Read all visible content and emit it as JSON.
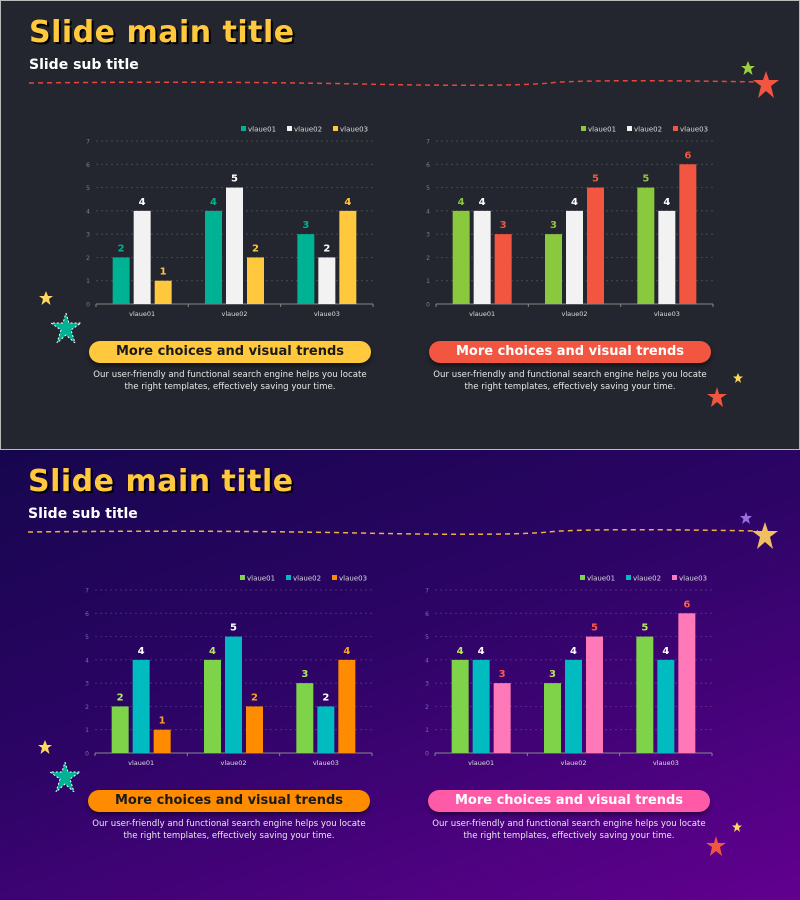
{
  "slides": [
    {
      "title": "Slide main title",
      "subtitle": "Slide sub title",
      "divider_color": "#e8463c",
      "background": "#23262e",
      "panels": [
        {
          "button_label": "More choices and visual trends",
          "button_color": "#ffc83d",
          "button_text_color": "#1a1a1a",
          "description": "Our user-friendly and functional search engine helps you locate the right templates, effectively saving your time."
        },
        {
          "button_label": "More choices and visual trends",
          "button_color": "#f25540",
          "button_text_color": "#ffffff",
          "description": "Our user-friendly and functional search engine helps you locate the right templates, effectively saving your time."
        }
      ]
    },
    {
      "title": "Slide main title",
      "subtitle": "Slide sub title",
      "divider_color": "#f0b040",
      "background": "#2d0466",
      "panels": [
        {
          "button_label": "More choices and visual trends",
          "button_color": "#ff8c00",
          "button_text_color": "#1a1a1a",
          "description": "Our user-friendly and functional search engine helps you locate the right templates, effectively saving your time."
        },
        {
          "button_label": "More choices and visual trends",
          "button_color": "#ff5aa8",
          "button_text_color": "#ffffff",
          "description": "Our user-friendly and functional search engine helps you locate the right templates, effectively saving your time."
        }
      ]
    }
  ],
  "chart_data": [
    {
      "type": "bar",
      "categories": [
        "vlaue01",
        "vlaue02",
        "vlaue03"
      ],
      "ylim": [
        0,
        7
      ],
      "grid": true,
      "legend": "top-right",
      "series": [
        {
          "name": "vlaue01",
          "values": [
            2,
            4,
            3
          ],
          "color": "#00b294",
          "label_color": "#00b294"
        },
        {
          "name": "vlaue02",
          "values": [
            4,
            5,
            2
          ],
          "color": "#f2f2f2",
          "label_color": "#ffffff"
        },
        {
          "name": "vlaue03",
          "values": [
            1,
            2,
            4
          ],
          "color": "#ffc83d",
          "label_color": "#ffc83d"
        }
      ]
    },
    {
      "type": "bar",
      "categories": [
        "vlaue01",
        "vlaue02",
        "vlaue03"
      ],
      "ylim": [
        0,
        7
      ],
      "grid": true,
      "legend": "top-right",
      "series": [
        {
          "name": "vlaue01",
          "values": [
            4,
            3,
            5
          ],
          "color": "#8ac83d",
          "label_color": "#8ac83d"
        },
        {
          "name": "vlaue02",
          "values": [
            4,
            4,
            4
          ],
          "color": "#f2f2f2",
          "label_color": "#ffffff"
        },
        {
          "name": "vlaue03",
          "values": [
            3,
            5,
            6
          ],
          "color": "#f25540",
          "label_color": "#f25540"
        }
      ]
    },
    {
      "type": "bar",
      "categories": [
        "vlaue01",
        "vlaue02",
        "vlaue03"
      ],
      "ylim": [
        0,
        7
      ],
      "grid": true,
      "legend": "top-right",
      "series": [
        {
          "name": "vlaue01",
          "values": [
            2,
            4,
            3
          ],
          "color": "#7ed348",
          "label_color": "#b8e860"
        },
        {
          "name": "vlaue02",
          "values": [
            4,
            5,
            2
          ],
          "color": "#00bcc0",
          "label_color": "#ffffff"
        },
        {
          "name": "vlaue03",
          "values": [
            1,
            2,
            4
          ],
          "color": "#ff8c00",
          "label_color": "#ffa020"
        }
      ]
    },
    {
      "type": "bar",
      "categories": [
        "vlaue01",
        "vlaue02",
        "vlaue03"
      ],
      "ylim": [
        0,
        7
      ],
      "grid": true,
      "legend": "top-right",
      "series": [
        {
          "name": "vlaue01",
          "values": [
            4,
            3,
            5
          ],
          "color": "#7ed348",
          "label_color": "#b8e860"
        },
        {
          "name": "vlaue02",
          "values": [
            4,
            4,
            4
          ],
          "color": "#00bcc0",
          "label_color": "#ffffff"
        },
        {
          "name": "vlaue03",
          "values": [
            3,
            5,
            6
          ],
          "color": "#ff78b8",
          "label_color": "#ff5a4a"
        }
      ]
    }
  ]
}
